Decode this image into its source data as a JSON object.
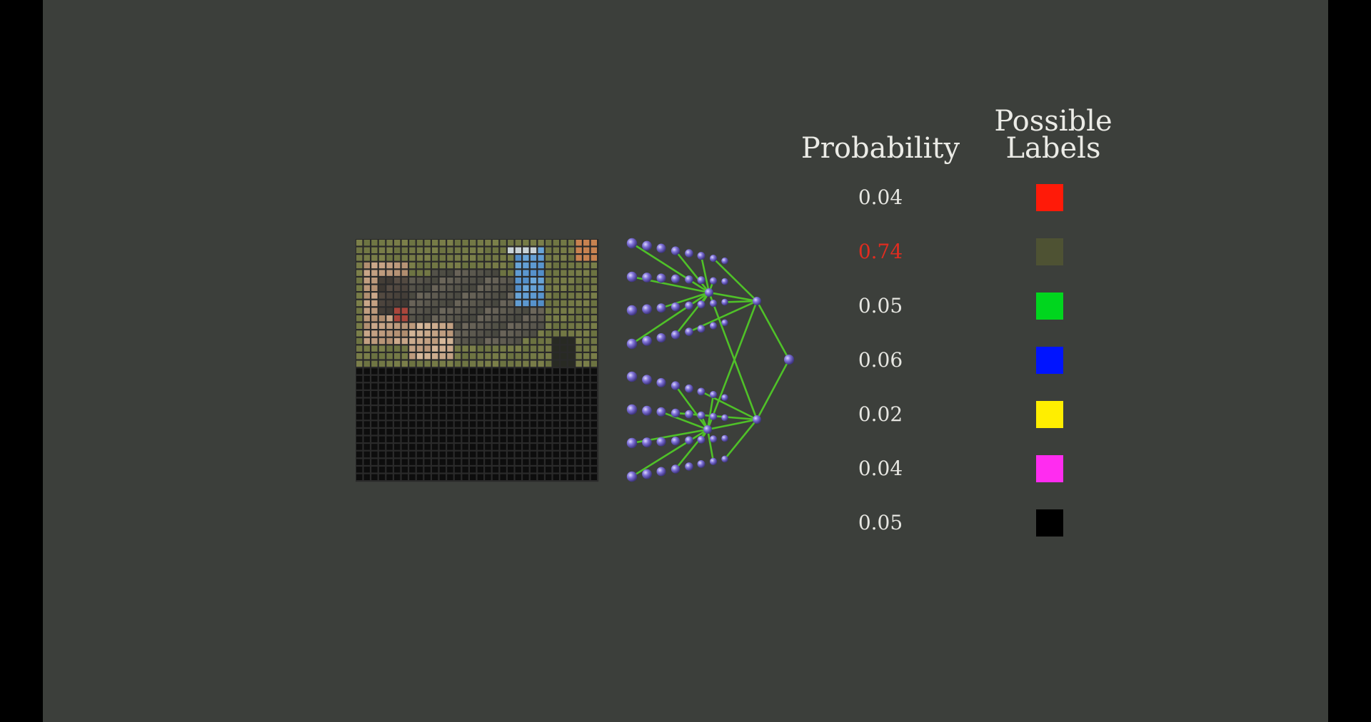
{
  "headers": {
    "probability": "Probability",
    "labels_line1": "Possible",
    "labels_line2": "Labels"
  },
  "rows": [
    {
      "prob": "0.04",
      "color": "#ff1a08",
      "highlight": false
    },
    {
      "prob": "0.74",
      "color": "#4e5233",
      "highlight": true
    },
    {
      "prob": "0.05",
      "color": "#00d61e",
      "highlight": false
    },
    {
      "prob": "0.06",
      "color": "#0014ff",
      "highlight": false
    },
    {
      "prob": "0.02",
      "color": "#ffee00",
      "highlight": false
    },
    {
      "prob": "0.04",
      "color": "#ff2cf0",
      "highlight": false
    },
    {
      "prob": "0.05",
      "color": "#000000",
      "highlight": false
    }
  ],
  "colors": {
    "background": "#3c3f3b",
    "highlight_text": "#e02c20",
    "connection": "#4fc128",
    "node": "#7f72d8",
    "grid_empty": "#0d0d0d",
    "grid_line": "#2a2a2a"
  },
  "image_grid": {
    "columns": 32,
    "rows": 32,
    "filled_rows": 17
  },
  "network": {
    "input_nodes": 64,
    "hidden_layers": [
      8,
      2,
      1
    ]
  }
}
